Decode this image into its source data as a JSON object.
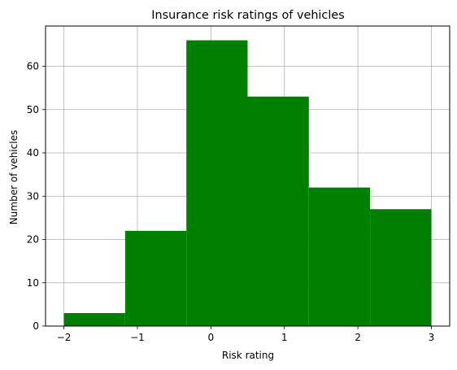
{
  "chart_data": {
    "type": "bar",
    "title": "Insurance risk ratings of vehicles",
    "xlabel": "Risk rating",
    "ylabel": "Number of vehicles",
    "bin_edges": [
      -2,
      -1.1667,
      -0.3333,
      0.5,
      1.3333,
      2.1667,
      3
    ],
    "values": [
      3,
      22,
      66,
      53,
      32,
      27
    ],
    "xlim": [
      -2.25,
      3.25
    ],
    "ylim": [
      0,
      69.3
    ],
    "x_ticks": [
      -2,
      -1,
      0,
      1,
      2,
      3
    ],
    "x_tick_labels": [
      "−2",
      "−1",
      "0",
      "1",
      "2",
      "3"
    ],
    "y_ticks": [
      0,
      10,
      20,
      30,
      40,
      50,
      60
    ],
    "y_tick_labels": [
      "0",
      "10",
      "20",
      "30",
      "40",
      "50",
      "60"
    ],
    "grid": true,
    "bar_color": "#008000",
    "grid_color": "#b0b0b0"
  }
}
